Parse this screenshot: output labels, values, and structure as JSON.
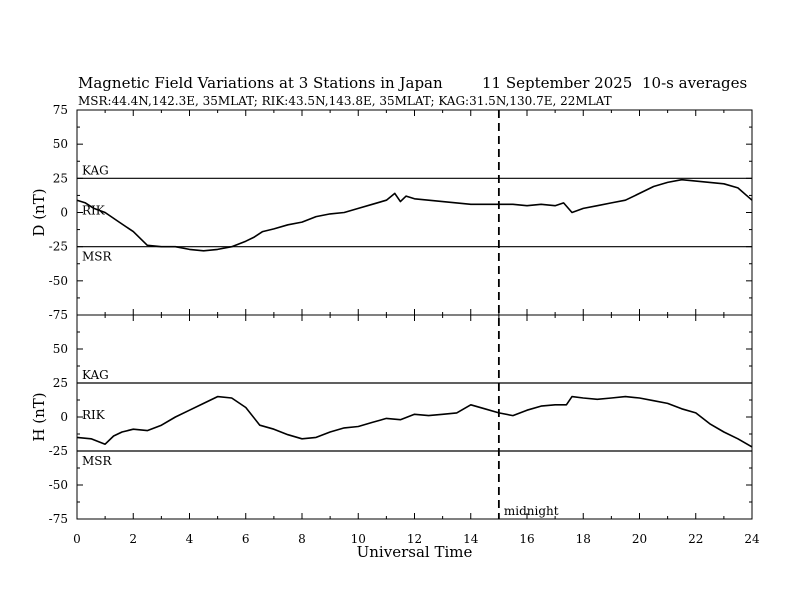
{
  "header": {
    "title": "Magnetic Field Variations at 3 Stations in Japan",
    "date": "11 September 2025",
    "averaging": "10-s averages",
    "stations_line": "MSR:44.4N,142.3E, 35MLAT;  RIK:43.5N,143.8E, 35MLAT;  KAG:31.5N,130.7E, 22MLAT"
  },
  "chart_data": [
    {
      "type": "line",
      "panel": "top",
      "ylabel": "D (nT)",
      "xlabel": "Universal Time",
      "xlim": [
        0,
        24
      ],
      "ylim": [
        -75,
        75
      ],
      "xticks": [
        0,
        2,
        4,
        6,
        8,
        10,
        12,
        14,
        16,
        18,
        20,
        22,
        24
      ],
      "yticks": [
        -75,
        -50,
        -25,
        0,
        25,
        50,
        75
      ],
      "baselines": [
        {
          "name": "KAG",
          "value": 25
        },
        {
          "name": "RIK",
          "value": 0
        },
        {
          "name": "MSR",
          "value": -25
        }
      ],
      "series": [
        {
          "name": "D",
          "x": [
            0,
            0.3,
            0.6,
            1.0,
            1.5,
            2.0,
            2.5,
            3.0,
            3.5,
            4.0,
            4.5,
            5.0,
            5.5,
            6.0,
            6.3,
            6.6,
            7.0,
            7.5,
            8.0,
            8.5,
            9.0,
            9.5,
            10.0,
            10.5,
            11.0,
            11.3,
            11.5,
            11.7,
            12.0,
            12.5,
            13.0,
            13.5,
            14.0,
            14.5,
            15.0,
            15.5,
            16.0,
            16.5,
            17.0,
            17.3,
            17.6,
            18.0,
            18.5,
            19.0,
            19.5,
            20.0,
            20.5,
            21.0,
            21.5,
            22.0,
            22.5,
            23.0,
            23.5,
            24.0
          ],
          "values": [
            9,
            7,
            3,
            0,
            -7,
            -14,
            -24,
            -25,
            -25,
            -27,
            -28,
            -27,
            -25,
            -21,
            -18,
            -14,
            -12,
            -9,
            -7,
            -3,
            -1,
            0,
            3,
            6,
            9,
            14,
            8,
            12,
            10,
            9,
            8,
            7,
            6,
            6,
            6,
            6,
            5,
            6,
            5,
            7,
            0,
            3,
            5,
            7,
            9,
            14,
            19,
            22,
            24,
            23,
            22,
            21,
            18,
            9
          ]
        }
      ]
    },
    {
      "type": "line",
      "panel": "bottom",
      "ylabel": "H (nT)",
      "xlabel": "Universal Time",
      "xlim": [
        0,
        24
      ],
      "ylim": [
        -75,
        75
      ],
      "xticks": [
        0,
        2,
        4,
        6,
        8,
        10,
        12,
        14,
        16,
        18,
        20,
        22,
        24
      ],
      "yticks": [
        -75,
        -50,
        -25,
        0,
        25,
        50,
        75
      ],
      "baselines": [
        {
          "name": "KAG",
          "value": 25
        },
        {
          "name": "RIK",
          "value": 0
        },
        {
          "name": "MSR",
          "value": -25
        }
      ],
      "series": [
        {
          "name": "H",
          "x": [
            0,
            0.5,
            1.0,
            1.3,
            1.6,
            2.0,
            2.5,
            3.0,
            3.5,
            4.0,
            4.5,
            5.0,
            5.5,
            6.0,
            6.5,
            7.0,
            7.5,
            8.0,
            8.5,
            9.0,
            9.5,
            10.0,
            10.5,
            11.0,
            11.5,
            12.0,
            12.5,
            13.0,
            13.5,
            14.0,
            14.5,
            15.0,
            15.5,
            16.0,
            16.5,
            17.0,
            17.4,
            17.6,
            18.0,
            18.5,
            19.0,
            19.5,
            20.0,
            20.5,
            21.0,
            21.5,
            22.0,
            22.5,
            23.0,
            23.5,
            24.0
          ],
          "values": [
            -15,
            -16,
            -20,
            -14,
            -11,
            -9,
            -10,
            -6,
            0,
            5,
            10,
            15,
            14,
            7,
            -6,
            -9,
            -13,
            -16,
            -15,
            -11,
            -8,
            -7,
            -4,
            -1,
            -2,
            2,
            1,
            2,
            3,
            9,
            6,
            3,
            1,
            5,
            8,
            9,
            9,
            15,
            14,
            13,
            14,
            15,
            14,
            12,
            10,
            6,
            3,
            -5,
            -11,
            -16,
            -22
          ]
        }
      ]
    }
  ],
  "annotation": {
    "midnight_label": "midnight",
    "midnight_ut": 15
  }
}
